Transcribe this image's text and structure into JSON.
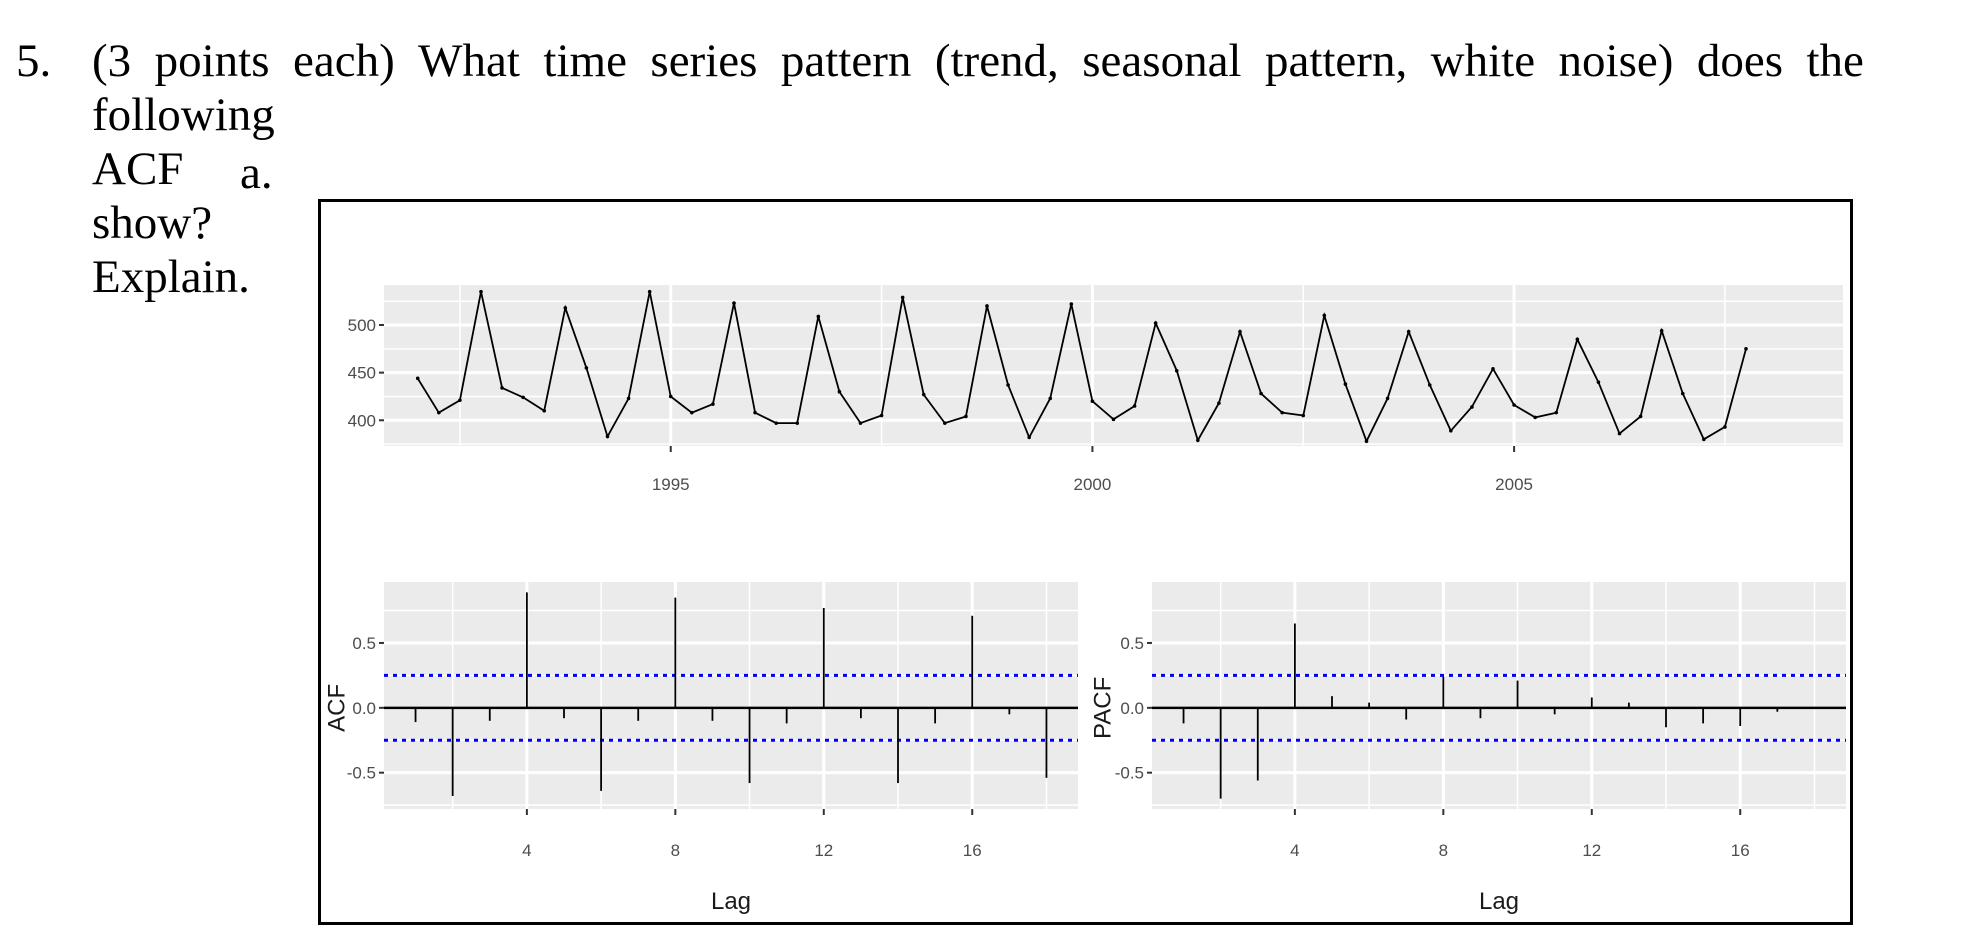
{
  "question": {
    "number": "5.",
    "line1_words": [
      "(3",
      "points",
      "each)",
      "What",
      "time",
      "series",
      "pattern",
      "(trend,",
      "seasonal",
      "pattern,",
      "white",
      "noise)",
      "does",
      "the"
    ],
    "line2": "following ACF show? Explain.",
    "sub_label": "a."
  },
  "colors": {
    "panel_bg": "#ebebeb",
    "grid": "#ffffff",
    "line": "#000000",
    "ci_line": "#0000ff",
    "tick_text": "#4d4d4d",
    "border": "#000000"
  },
  "chart_data": [
    {
      "type": "line",
      "title": "",
      "xlabel": "",
      "ylabel": "",
      "x_ticks": [
        "1995",
        "2000",
        "2005"
      ],
      "y_ticks": [
        "400",
        "450",
        "500"
      ],
      "xlim": [
        1991.6,
        2008.9
      ],
      "ylim": [
        373,
        542
      ],
      "grid": true,
      "frequency": "quarterly",
      "start": "1992 Q1",
      "x": [
        1992.0,
        1992.25,
        1992.5,
        1992.75,
        1993.0,
        1993.25,
        1993.5,
        1993.75,
        1994.0,
        1994.25,
        1994.5,
        1994.75,
        1995.0,
        1995.25,
        1995.5,
        1995.75,
        1996.0,
        1996.25,
        1996.5,
        1996.75,
        1997.0,
        1997.25,
        1997.5,
        1997.75,
        1998.0,
        1998.25,
        1998.5,
        1998.75,
        1999.0,
        1999.25,
        1999.5,
        1999.75,
        2000.0,
        2000.25,
        2000.5,
        2000.75,
        2001.0,
        2001.25,
        2001.5,
        2001.75,
        2002.0,
        2002.25,
        2002.5,
        2002.75,
        2003.0,
        2003.25,
        2003.5,
        2003.75,
        2004.0,
        2004.25,
        2004.5,
        2004.75,
        2005.0,
        2005.25,
        2005.5,
        2005.75,
        2006.0,
        2006.25,
        2006.5,
        2006.75,
        2007.0,
        2007.25,
        2007.5,
        2007.75
      ],
      "values": [
        444,
        408,
        421,
        535,
        434,
        424,
        410,
        518,
        455,
        383,
        423,
        535,
        425,
        408,
        417,
        523,
        408,
        397,
        397,
        509,
        430,
        397,
        405,
        529,
        427,
        397,
        404,
        520,
        437,
        382,
        423,
        522,
        420,
        401,
        415,
        502,
        452,
        379,
        418,
        493,
        428,
        408,
        405,
        510,
        438,
        378,
        423,
        493,
        437,
        389,
        414,
        454,
        416,
        403,
        408,
        485,
        440,
        386,
        404,
        494,
        428,
        380,
        393,
        475
      ]
    },
    {
      "type": "bar",
      "title": "",
      "xlabel": "Lag",
      "ylabel": "ACF",
      "x_ticks": [
        "4",
        "8",
        "12",
        "16"
      ],
      "y_ticks": [
        "-0.5",
        "0.0",
        "0.5"
      ],
      "ylim": [
        -0.78,
        0.97
      ],
      "xlim": [
        0.15,
        18.85
      ],
      "confidence_bounds": [
        -0.25,
        0.25
      ],
      "categories": [
        1,
        2,
        3,
        4,
        5,
        6,
        7,
        8,
        9,
        10,
        11,
        12,
        13,
        14,
        15,
        16,
        17,
        18
      ],
      "values": [
        -0.11,
        -0.68,
        -0.1,
        0.89,
        -0.08,
        -0.64,
        -0.1,
        0.85,
        -0.1,
        -0.58,
        -0.12,
        0.77,
        -0.08,
        -0.58,
        -0.12,
        0.71,
        -0.05,
        -0.54
      ]
    },
    {
      "type": "bar",
      "title": "",
      "xlabel": "Lag",
      "ylabel": "PACF",
      "x_ticks": [
        "4",
        "8",
        "12",
        "16"
      ],
      "y_ticks": [
        "-0.5",
        "0.0",
        "0.5"
      ],
      "ylim": [
        -0.78,
        0.97
      ],
      "xlim": [
        0.15,
        18.85
      ],
      "confidence_bounds": [
        -0.25,
        0.25
      ],
      "categories": [
        1,
        2,
        3,
        4,
        5,
        6,
        7,
        8,
        9,
        10,
        11,
        12,
        13,
        14,
        15,
        16,
        17
      ],
      "values": [
        -0.12,
        -0.7,
        -0.56,
        0.65,
        0.09,
        0.04,
        -0.09,
        0.24,
        -0.08,
        0.21,
        -0.05,
        0.08,
        0.04,
        -0.15,
        -0.12,
        -0.14,
        -0.03
      ]
    }
  ]
}
